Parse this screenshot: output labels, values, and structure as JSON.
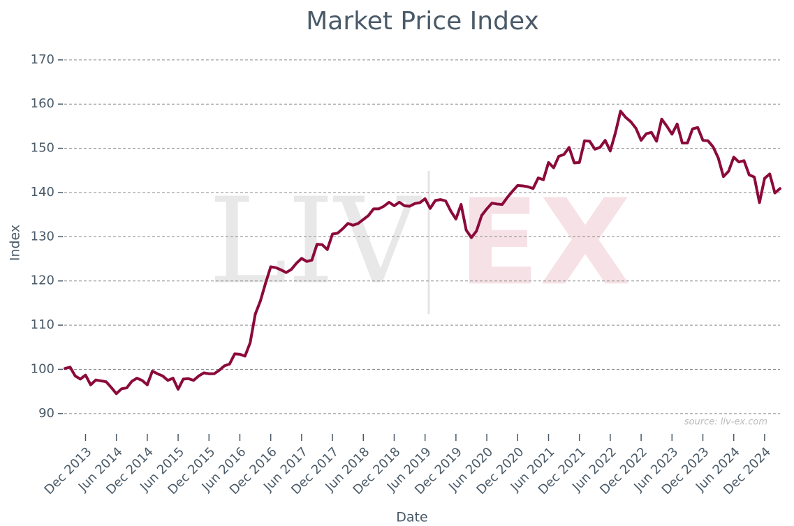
{
  "chart_data": {
    "type": "line",
    "title": "Market Price Index",
    "x_label": "Date",
    "y_label": "Index",
    "annotation": "source: liv-ex.com",
    "watermark": [
      "LIV",
      "EX"
    ],
    "grid": true,
    "x": [
      "2013-08",
      "2013-09",
      "2013-10",
      "2013-11",
      "2013-12",
      "2014-01",
      "2014-02",
      "2014-03",
      "2014-04",
      "2014-05",
      "2014-06",
      "2014-07",
      "2014-08",
      "2014-09",
      "2014-10",
      "2014-11",
      "2014-12",
      "2015-01",
      "2015-02",
      "2015-03",
      "2015-04",
      "2015-05",
      "2015-06",
      "2015-07",
      "2015-08",
      "2015-09",
      "2015-10",
      "2015-11",
      "2015-12",
      "2016-01",
      "2016-02",
      "2016-03",
      "2016-04",
      "2016-05",
      "2016-06",
      "2016-07",
      "2016-08",
      "2016-09",
      "2016-10",
      "2016-11",
      "2016-12",
      "2017-01",
      "2017-02",
      "2017-03",
      "2017-04",
      "2017-05",
      "2017-06",
      "2017-07",
      "2017-08",
      "2017-09",
      "2017-10",
      "2017-11",
      "2017-12",
      "2018-01",
      "2018-02",
      "2018-03",
      "2018-04",
      "2018-05",
      "2018-06",
      "2018-07",
      "2018-08",
      "2018-09",
      "2018-10",
      "2018-11",
      "2018-12",
      "2019-01",
      "2019-02",
      "2019-03",
      "2019-04",
      "2019-05",
      "2019-06",
      "2019-07",
      "2019-08",
      "2019-09",
      "2019-10",
      "2019-11",
      "2019-12",
      "2020-01",
      "2020-02",
      "2020-03",
      "2020-04",
      "2020-05",
      "2020-06",
      "2020-07",
      "2020-08",
      "2020-09",
      "2020-10",
      "2020-11",
      "2020-12",
      "2021-01",
      "2021-02",
      "2021-03",
      "2021-04",
      "2021-05",
      "2021-06",
      "2021-07",
      "2021-08",
      "2021-09",
      "2021-10",
      "2021-11",
      "2021-12",
      "2022-01",
      "2022-02",
      "2022-03",
      "2022-04",
      "2022-05",
      "2022-06",
      "2022-07",
      "2022-08",
      "2022-09",
      "2022-10",
      "2022-11",
      "2022-12",
      "2023-01",
      "2023-02",
      "2023-03",
      "2023-04",
      "2023-05",
      "2023-06",
      "2023-07",
      "2023-08",
      "2023-09",
      "2023-10",
      "2023-11",
      "2023-12",
      "2024-01",
      "2024-02",
      "2024-03",
      "2024-04",
      "2024-05",
      "2024-06",
      "2024-07",
      "2024-08",
      "2024-09",
      "2024-10",
      "2024-11",
      "2024-12",
      "2025-01",
      "2025-02",
      "2025-03"
    ],
    "series": [
      {
        "name": "Market Price Index",
        "color": "#8b0a3a",
        "values": [
          100.2,
          100.5,
          98.5,
          97.8,
          98.7,
          96.5,
          97.6,
          97.4,
          97.2,
          95.9,
          94.5,
          95.6,
          95.8,
          97.3,
          98.0,
          97.5,
          96.5,
          99.6,
          99.0,
          98.5,
          97.5,
          98.0,
          95.5,
          97.8,
          97.9,
          97.5,
          98.5,
          99.2,
          99.0,
          99.0,
          99.8,
          100.8,
          101.2,
          103.5,
          103.4,
          103.0,
          106.0,
          112.5,
          115.5,
          119.5,
          123.2,
          123.0,
          122.5,
          121.9,
          122.6,
          124.0,
          125.1,
          124.4,
          124.7,
          128.3,
          128.2,
          127.1,
          130.6,
          130.8,
          131.8,
          133.0,
          132.6,
          133.0,
          133.9,
          134.8,
          136.3,
          136.3,
          136.9,
          137.8,
          137.0,
          137.8,
          137.0,
          136.9,
          137.5,
          137.7,
          138.6,
          136.4,
          138.2,
          138.4,
          138.1,
          135.8,
          134.0,
          137.3,
          131.5,
          129.8,
          131.3,
          134.8,
          136.3,
          137.6,
          137.4,
          137.3,
          138.9,
          140.3,
          141.6,
          141.5,
          141.3,
          140.9,
          143.3,
          142.9,
          146.8,
          145.6,
          148.2,
          148.6,
          150.2,
          146.7,
          146.8,
          151.7,
          151.6,
          149.8,
          150.2,
          151.8,
          149.4,
          153.5,
          158.4,
          157.0,
          156.0,
          154.5,
          151.8,
          153.3,
          153.6,
          151.6,
          156.6,
          155.0,
          153.2,
          155.5,
          151.2,
          151.2,
          154.4,
          154.7,
          151.8,
          151.7,
          150.3,
          147.8,
          143.6,
          144.8,
          148.0,
          146.9,
          147.2,
          144.0,
          143.5,
          137.7,
          143.2,
          144.2,
          139.9,
          140.9
        ]
      }
    ],
    "xlim": [
      "2013-08",
      "2025-03"
    ],
    "xticks": [
      {
        "value": "2013-12",
        "label": "Dec 2013"
      },
      {
        "value": "2014-06",
        "label": "Jun 2014"
      },
      {
        "value": "2014-12",
        "label": "Dec 2014"
      },
      {
        "value": "2015-06",
        "label": "Jun 2015"
      },
      {
        "value": "2015-12",
        "label": "Dec 2015"
      },
      {
        "value": "2016-06",
        "label": "Jun 2016"
      },
      {
        "value": "2016-12",
        "label": "Dec 2016"
      },
      {
        "value": "2017-06",
        "label": "Jun 2017"
      },
      {
        "value": "2017-12",
        "label": "Dec 2017"
      },
      {
        "value": "2018-06",
        "label": "Jun 2018"
      },
      {
        "value": "2018-12",
        "label": "Dec 2018"
      },
      {
        "value": "2019-06",
        "label": "Jun 2019"
      },
      {
        "value": "2019-12",
        "label": "Dec 2019"
      },
      {
        "value": "2020-06",
        "label": "Jun 2020"
      },
      {
        "value": "2020-12",
        "label": "Dec 2020"
      },
      {
        "value": "2021-06",
        "label": "Jun 2021"
      },
      {
        "value": "2021-12",
        "label": "Dec 2021"
      },
      {
        "value": "2022-06",
        "label": "Jun 2022"
      },
      {
        "value": "2022-12",
        "label": "Dec 2022"
      },
      {
        "value": "2023-06",
        "label": "Jun 2023"
      },
      {
        "value": "2023-12",
        "label": "Dec 2023"
      },
      {
        "value": "2024-06",
        "label": "Jun 2024"
      },
      {
        "value": "2024-12",
        "label": "Dec 2024"
      }
    ],
    "ylim": [
      86.5,
      172.5
    ],
    "yticks": [
      90,
      100,
      110,
      120,
      130,
      140,
      150,
      160,
      170
    ]
  }
}
